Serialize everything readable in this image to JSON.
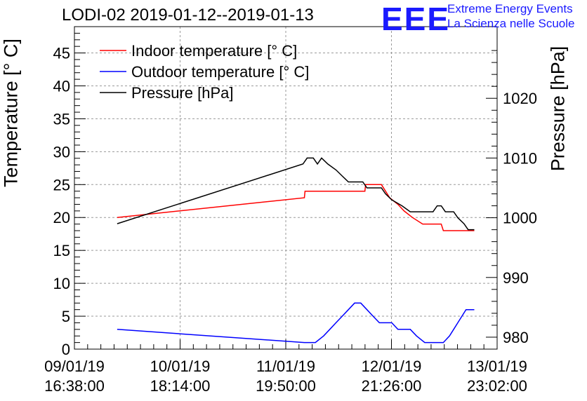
{
  "title": "LODI-02 2019-01-12--2019-01-13",
  "logo": {
    "mark": "EEE",
    "line1": "Extreme Energy Events",
    "line2": "La Scienza nelle Scuole"
  },
  "chart_data": {
    "type": "line",
    "title": "LODI-02 2019-01-12--2019-01-13",
    "ylabel": "Temperature [° C]",
    "y2label": "Pressure [hPa]",
    "ylim": [
      0,
      49
    ],
    "y2lim": [
      978,
      1032
    ],
    "yticks": [
      "0",
      "5",
      "10",
      "15",
      "20",
      "25",
      "30",
      "35",
      "40",
      "45"
    ],
    "y2ticks": [
      "980",
      "990",
      "1000",
      "1010",
      "1020"
    ],
    "xlim": [
      "2019-01-09 16:38",
      "2019-01-13 23:02"
    ],
    "xticks": [
      {
        "date": "09/01/19",
        "time": "16:38:00"
      },
      {
        "date": "10/01/19",
        "time": "18:14:00"
      },
      {
        "date": "11/01/19",
        "time": "19:50:00"
      },
      {
        "date": "12/01/19",
        "time": "21:26:00"
      },
      {
        "date": "13/01/19",
        "time": "23:02:00"
      }
    ],
    "grid": true,
    "legend_position": "top-left",
    "series": [
      {
        "name": "Indoor temperature [° C]",
        "axis": "left",
        "color": "#ff0000",
        "points": [
          [
            "2019-01-10 03:00",
            20
          ],
          [
            "2019-01-12 00:20",
            23
          ],
          [
            "2019-01-12 00:30",
            24
          ],
          [
            "2019-01-12 15:00",
            24
          ],
          [
            "2019-01-12 15:10",
            25
          ],
          [
            "2019-01-12 19:00",
            25
          ],
          [
            "2019-01-12 20:00",
            24
          ],
          [
            "2019-01-12 21:00",
            23
          ],
          [
            "2019-01-12 23:00",
            22
          ],
          [
            "2019-01-13 00:30",
            21
          ],
          [
            "2019-01-13 02:30",
            20
          ],
          [
            "2019-01-13 05:00",
            19
          ],
          [
            "2019-01-13 09:30",
            19
          ],
          [
            "2019-01-13 10:00",
            18
          ],
          [
            "2019-01-13 17:30",
            18
          ]
        ]
      },
      {
        "name": "Outdoor temperature [° C]",
        "axis": "left",
        "color": "#0000ff",
        "points": [
          [
            "2019-01-10 03:00",
            3
          ],
          [
            "2019-01-12 00:20",
            1
          ],
          [
            "2019-01-12 03:00",
            1
          ],
          [
            "2019-01-12 05:00",
            2
          ],
          [
            "2019-01-12 06:30",
            3
          ],
          [
            "2019-01-12 08:00",
            4
          ],
          [
            "2019-01-12 09:30",
            5
          ],
          [
            "2019-01-12 11:00",
            6
          ],
          [
            "2019-01-12 12:30",
            7
          ],
          [
            "2019-01-12 14:00",
            7
          ],
          [
            "2019-01-12 15:30",
            6
          ],
          [
            "2019-01-12 17:00",
            5
          ],
          [
            "2019-01-12 18:30",
            4
          ],
          [
            "2019-01-12 21:30",
            4
          ],
          [
            "2019-01-12 23:00",
            3
          ],
          [
            "2019-01-13 02:00",
            3
          ],
          [
            "2019-01-13 03:30",
            2
          ],
          [
            "2019-01-13 05:30",
            1
          ],
          [
            "2019-01-13 10:00",
            1
          ],
          [
            "2019-01-13 11:30",
            2
          ],
          [
            "2019-01-13 12:30",
            3
          ],
          [
            "2019-01-13 13:30",
            4
          ],
          [
            "2019-01-13 14:30",
            5
          ],
          [
            "2019-01-13 15:30",
            6
          ],
          [
            "2019-01-13 17:30",
            6
          ]
        ]
      },
      {
        "name": "Pressure [hPa]",
        "axis": "right",
        "color": "#000000",
        "points": [
          [
            "2019-01-10 03:00",
            999
          ],
          [
            "2019-01-12 00:00",
            1009
          ],
          [
            "2019-01-12 01:00",
            1010
          ],
          [
            "2019-01-12 02:30",
            1010
          ],
          [
            "2019-01-12 03:30",
            1009
          ],
          [
            "2019-01-12 04:30",
            1010
          ],
          [
            "2019-01-12 06:00",
            1009
          ],
          [
            "2019-01-12 08:00",
            1008
          ],
          [
            "2019-01-12 09:30",
            1007
          ],
          [
            "2019-01-12 11:00",
            1006
          ],
          [
            "2019-01-12 14:30",
            1006
          ],
          [
            "2019-01-12 15:30",
            1005
          ],
          [
            "2019-01-12 19:00",
            1005
          ],
          [
            "2019-01-12 20:00",
            1004
          ],
          [
            "2019-01-12 21:30",
            1003
          ],
          [
            "2019-01-13 00:00",
            1002
          ],
          [
            "2019-01-13 02:00",
            1001
          ],
          [
            "2019-01-13 07:30",
            1001
          ],
          [
            "2019-01-13 08:30",
            1002
          ],
          [
            "2019-01-13 09:30",
            1002
          ],
          [
            "2019-01-13 10:30",
            1001
          ],
          [
            "2019-01-13 12:30",
            1001
          ],
          [
            "2019-01-13 13:30",
            1000
          ],
          [
            "2019-01-13 15:00",
            999
          ],
          [
            "2019-01-13 16:00",
            998
          ],
          [
            "2019-01-13 17:30",
            998
          ]
        ]
      }
    ]
  }
}
